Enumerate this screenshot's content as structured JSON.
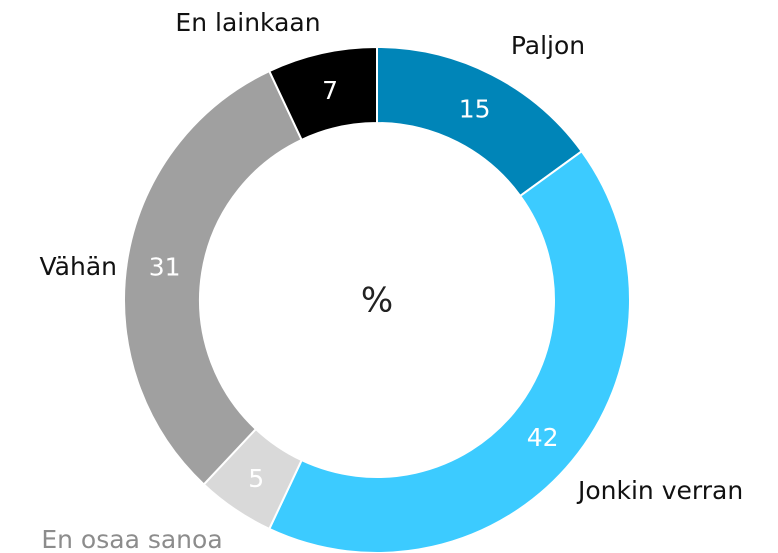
{
  "chart_data": {
    "type": "donut",
    "center_label": "%",
    "categories": [
      "Paljon",
      "Jonkin verran",
      "En osaa sanoa",
      "Vähän",
      "En lainkaan"
    ],
    "values": [
      15,
      42,
      5,
      31,
      7
    ],
    "colors": [
      "#0085b8",
      "#3ccbff",
      "#d9d9d9",
      "#a0a0a0",
      "#000000"
    ]
  }
}
